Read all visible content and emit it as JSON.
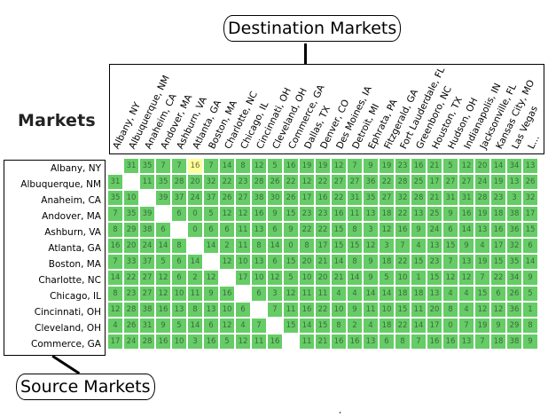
{
  "title": "Markets",
  "callouts": {
    "destination": "Destination Markets",
    "source": "Source Markets"
  },
  "colors": {
    "cell": "#66cc66",
    "highlight": "#ffff99",
    "self": "#ffffff"
  },
  "highlighted_cell": {
    "row": 0,
    "col": 5
  },
  "destination_markets": [
    "Albany, NY",
    "Albuquerque, NM",
    "Anaheim, CA",
    "Andover, MA",
    "Ashburn, VA",
    "Atlanta, GA",
    "Boston, MA",
    "Charlotte, NC",
    "Chicago, IL",
    "Cincinnati, OH",
    "Cleveland, OH",
    "Commerce, GA",
    "Dallas, TX",
    "Denver, CO",
    "Des Moines, IA",
    "Detroit, MI",
    "Ephrata, PA",
    "Fitzgerald, GA",
    "Fort Lauderdale, FL",
    "Greenboro, NC",
    "Houston, TX",
    "Hudson, OH",
    "Indianapolis, IN",
    "Jacksonville, FL",
    "Kansas City, MO",
    "Las Vegas",
    "L..."
  ],
  "source_markets": [
    "Albany, NY",
    "Albuquerque, NM",
    "Anaheim, CA",
    "Andover, MA",
    "Ashburn, VA",
    "Atlanta, GA",
    "Boston, MA",
    "Charlotte, NC",
    "Chicago, IL",
    "Cincinnati, OH",
    "Cleveland, OH",
    "Commerce, GA"
  ],
  "chart_data": {
    "type": "heatmap",
    "title": "Markets",
    "xlabel": "Destination Markets",
    "ylabel": "Source Markets",
    "rows": 12,
    "visible_columns": 27,
    "values": [
      [
        null,
        31,
        35,
        7,
        7,
        16,
        7,
        14,
        8,
        12,
        5,
        16,
        19,
        19,
        12,
        7,
        9,
        19,
        23,
        16,
        21,
        5,
        12,
        20,
        14,
        34,
        13
      ],
      [
        31,
        null,
        11,
        35,
        28,
        20,
        32,
        22,
        23,
        28,
        26,
        22,
        12,
        22,
        27,
        27,
        36,
        22,
        28,
        25,
        17,
        27,
        27,
        24,
        19,
        13,
        26
      ],
      [
        35,
        10,
        null,
        39,
        37,
        24,
        37,
        26,
        27,
        38,
        30,
        26,
        17,
        16,
        22,
        31,
        35,
        27,
        32,
        28,
        21,
        31,
        31,
        28,
        23,
        3,
        32
      ],
      [
        7,
        35,
        39,
        null,
        6,
        0,
        5,
        12,
        12,
        16,
        9,
        15,
        23,
        23,
        16,
        11,
        13,
        18,
        22,
        13,
        25,
        9,
        16,
        19,
        18,
        38,
        17
      ],
      [
        8,
        29,
        38,
        6,
        null,
        0,
        6,
        6,
        11,
        13,
        6,
        9,
        22,
        22,
        15,
        8,
        3,
        12,
        16,
        9,
        24,
        6,
        14,
        13,
        16,
        36,
        15
      ],
      [
        16,
        20,
        24,
        14,
        8,
        null,
        14,
        2,
        11,
        8,
        14,
        0,
        8,
        17,
        15,
        15,
        12,
        3,
        7,
        4,
        13,
        15,
        9,
        4,
        17,
        32,
        6
      ],
      [
        7,
        33,
        37,
        5,
        6,
        14,
        null,
        12,
        10,
        13,
        6,
        15,
        20,
        21,
        14,
        8,
        9,
        18,
        22,
        15,
        23,
        7,
        13,
        19,
        15,
        35,
        14
      ],
      [
        14,
        22,
        27,
        12,
        6,
        2,
        12,
        null,
        17,
        10,
        12,
        5,
        10,
        20,
        21,
        14,
        9,
        5,
        10,
        1,
        15,
        12,
        12,
        7,
        22,
        34,
        9
      ],
      [
        8,
        23,
        27,
        12,
        10,
        11,
        9,
        16,
        null,
        6,
        3,
        12,
        11,
        11,
        4,
        4,
        14,
        14,
        18,
        18,
        13,
        4,
        4,
        15,
        6,
        26,
        5
      ],
      [
        12,
        28,
        38,
        16,
        13,
        8,
        13,
        10,
        6,
        null,
        7,
        11,
        16,
        22,
        10,
        9,
        11,
        10,
        15,
        11,
        20,
        8,
        4,
        12,
        12,
        36,
        1
      ],
      [
        4,
        26,
        31,
        9,
        5,
        14,
        6,
        12,
        4,
        7,
        null,
        15,
        14,
        15,
        8,
        2,
        4,
        18,
        22,
        14,
        17,
        0,
        7,
        19,
        9,
        29,
        8
      ],
      [
        17,
        24,
        28,
        16,
        10,
        3,
        16,
        5,
        12,
        11,
        16,
        null,
        11,
        21,
        16,
        16,
        13,
        6,
        8,
        7,
        16,
        16,
        13,
        7,
        18,
        38,
        9
      ]
    ]
  }
}
